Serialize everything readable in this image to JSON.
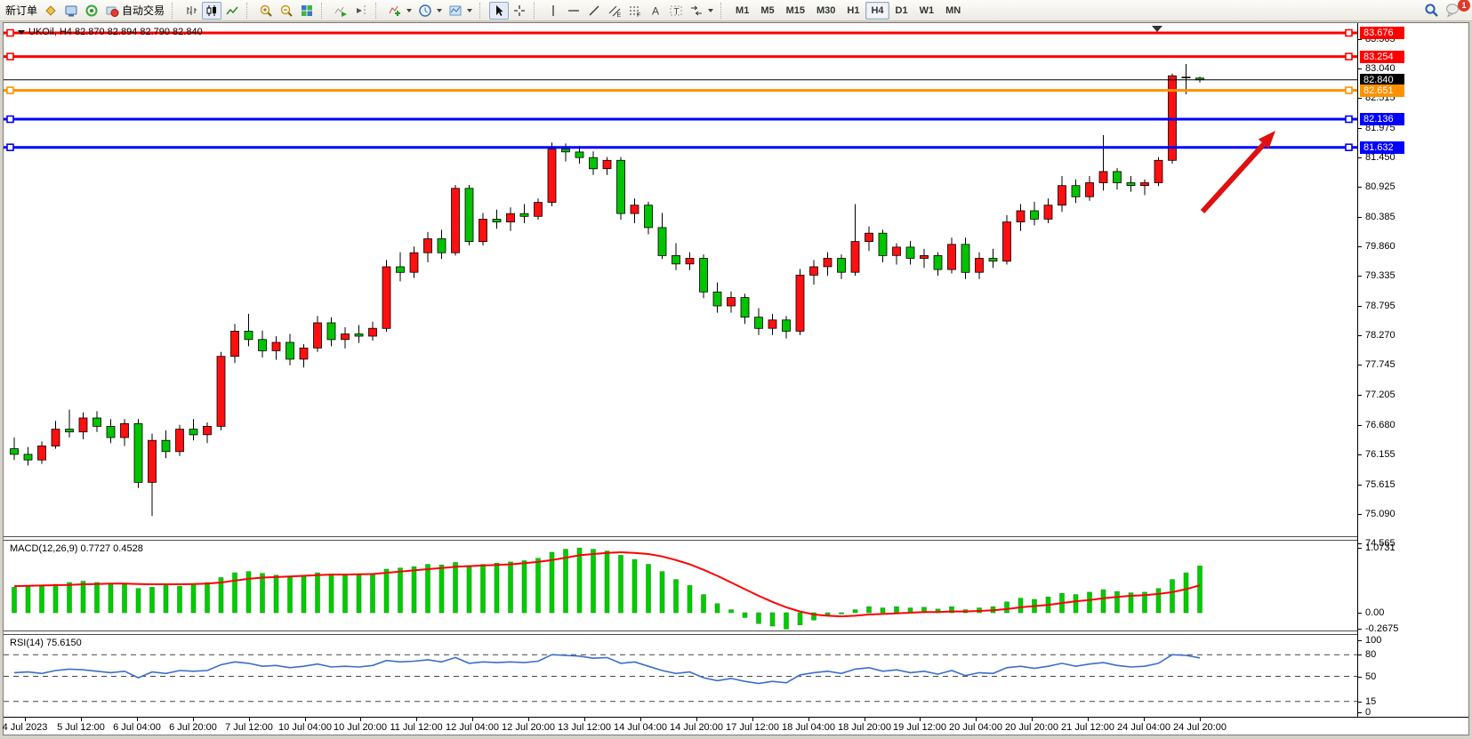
{
  "toolbar": {
    "new_order_label": "新订单",
    "autotrading_label": "自动交易",
    "timeframes": [
      "M1",
      "M5",
      "M15",
      "M30",
      "H1",
      "H4",
      "D1",
      "W1",
      "MN"
    ],
    "active_timeframe": "H4",
    "chat_badge_count": "1"
  },
  "chart_data": [
    {
      "type": "candlestick",
      "symbol": "UKOil",
      "timeframe": "H4",
      "title": "UKOil, H4  82.870 82.894 82.790 82.840",
      "ohlc_display": {
        "open": "82.870",
        "high": "82.894",
        "low": "82.790",
        "close": "82.840"
      },
      "ylim": [
        74.565,
        83.676
      ],
      "price_ticks": [
        83.565,
        83.04,
        82.515,
        81.975,
        81.45,
        80.925,
        80.385,
        79.86,
        79.335,
        78.795,
        78.27,
        77.745,
        77.205,
        76.68,
        76.155,
        75.615,
        75.09,
        74.565
      ],
      "hlines": [
        {
          "price": 83.676,
          "color": "#FF0000",
          "label": "83.676",
          "style": "thick"
        },
        {
          "price": 83.254,
          "color": "#FF0000",
          "label": "83.254",
          "style": "thick"
        },
        {
          "price": 82.84,
          "color": "#000000",
          "label": "82.840",
          "style": "thin"
        },
        {
          "price": 82.651,
          "color": "#FF9100",
          "label": "82.651",
          "style": "thick"
        },
        {
          "price": 82.136,
          "color": "#0000FF",
          "label": "82.136",
          "style": "thick"
        },
        {
          "price": 81.632,
          "color": "#0000FF",
          "label": "81.632",
          "style": "thick"
        }
      ],
      "colors": {
        "bull": "#FF1010",
        "bear": "#00C400",
        "wick": "#000000",
        "doji": "#000000",
        "arrow": "#E01010"
      },
      "candles": [
        [
          76.25,
          76.45,
          76.05,
          76.15
        ],
        [
          76.15,
          76.28,
          75.95,
          76.05
        ],
        [
          76.05,
          76.38,
          75.98,
          76.3
        ],
        [
          76.3,
          76.75,
          76.25,
          76.6
        ],
        [
          76.6,
          76.95,
          76.45,
          76.55
        ],
        [
          76.55,
          76.9,
          76.42,
          76.8
        ],
        [
          76.8,
          76.92,
          76.55,
          76.65
        ],
        [
          76.65,
          76.78,
          76.35,
          76.45
        ],
        [
          76.45,
          76.78,
          76.3,
          76.7
        ],
        [
          76.7,
          76.78,
          75.55,
          75.65
        ],
        [
          75.65,
          76.52,
          75.05,
          76.4
        ],
        [
          76.4,
          76.58,
          76.08,
          76.2
        ],
        [
          76.2,
          76.68,
          76.12,
          76.6
        ],
        [
          76.6,
          76.78,
          76.4,
          76.5
        ],
        [
          76.5,
          76.72,
          76.35,
          76.65
        ],
        [
          76.65,
          77.98,
          76.58,
          77.9
        ],
        [
          77.9,
          78.48,
          77.78,
          78.35
        ],
        [
          78.35,
          78.66,
          78.08,
          78.2
        ],
        [
          78.2,
          78.36,
          77.88,
          78.0
        ],
        [
          78.0,
          78.26,
          77.84,
          78.15
        ],
        [
          78.15,
          78.3,
          77.74,
          77.85
        ],
        [
          77.85,
          78.12,
          77.7,
          78.05
        ],
        [
          78.05,
          78.62,
          77.98,
          78.5
        ],
        [
          78.5,
          78.6,
          78.08,
          78.2
        ],
        [
          78.2,
          78.42,
          78.04,
          78.3
        ],
        [
          78.3,
          78.46,
          78.14,
          78.26
        ],
        [
          78.26,
          78.52,
          78.18,
          78.4
        ],
        [
          78.4,
          79.62,
          78.34,
          79.5
        ],
        [
          79.5,
          79.76,
          79.24,
          79.4
        ],
        [
          79.4,
          79.86,
          79.3,
          79.75
        ],
        [
          79.75,
          80.12,
          79.58,
          80.0
        ],
        [
          80.0,
          80.16,
          79.64,
          79.75
        ],
        [
          79.75,
          80.96,
          79.7,
          80.9
        ],
        [
          80.9,
          80.96,
          79.88,
          79.95
        ],
        [
          79.95,
          80.46,
          79.88,
          80.35
        ],
        [
          80.35,
          80.52,
          80.18,
          80.3
        ],
        [
          80.3,
          80.56,
          80.14,
          80.45
        ],
        [
          80.45,
          80.62,
          80.28,
          80.4
        ],
        [
          80.4,
          80.72,
          80.34,
          80.65
        ],
        [
          80.65,
          81.72,
          80.58,
          81.6
        ],
        [
          81.6,
          81.7,
          81.38,
          81.55
        ],
        [
          81.55,
          81.66,
          81.34,
          81.45
        ],
        [
          81.45,
          81.56,
          81.14,
          81.25
        ],
        [
          81.25,
          81.46,
          81.14,
          81.4
        ],
        [
          81.4,
          81.46,
          80.34,
          80.45
        ],
        [
          80.45,
          80.72,
          80.28,
          80.6
        ],
        [
          80.6,
          80.66,
          80.08,
          80.2
        ],
        [
          80.2,
          80.46,
          79.64,
          79.7
        ],
        [
          79.7,
          79.92,
          79.44,
          79.55
        ],
        [
          79.55,
          79.76,
          79.44,
          79.65
        ],
        [
          79.65,
          79.72,
          78.94,
          79.05
        ],
        [
          79.05,
          79.22,
          78.68,
          78.8
        ],
        [
          78.8,
          79.06,
          78.68,
          78.95
        ],
        [
          78.95,
          79.02,
          78.48,
          78.6
        ],
        [
          78.6,
          78.76,
          78.28,
          78.4
        ],
        [
          78.4,
          78.66,
          78.28,
          78.55
        ],
        [
          78.55,
          78.62,
          78.22,
          78.35
        ],
        [
          78.35,
          79.46,
          78.28,
          79.35
        ],
        [
          79.35,
          79.62,
          79.18,
          79.5
        ],
        [
          79.5,
          79.76,
          79.34,
          79.65
        ],
        [
          79.65,
          79.72,
          79.28,
          79.4
        ],
        [
          79.4,
          80.62,
          79.34,
          79.95
        ],
        [
          79.95,
          80.22,
          79.78,
          80.1
        ],
        [
          80.1,
          80.16,
          79.58,
          79.7
        ],
        [
          79.7,
          79.92,
          79.54,
          79.85
        ],
        [
          79.85,
          79.96,
          79.54,
          79.65
        ],
        [
          79.65,
          79.82,
          79.48,
          79.7
        ],
        [
          79.7,
          79.76,
          79.34,
          79.45
        ],
        [
          79.45,
          80.02,
          79.38,
          79.9
        ],
        [
          79.9,
          80.02,
          79.28,
          79.4
        ],
        [
          79.4,
          79.76,
          79.28,
          79.65
        ],
        [
          79.65,
          79.82,
          79.48,
          79.6
        ],
        [
          79.6,
          80.42,
          79.54,
          80.3
        ],
        [
          80.3,
          80.62,
          80.14,
          80.5
        ],
        [
          80.5,
          80.66,
          80.24,
          80.35
        ],
        [
          80.35,
          80.72,
          80.28,
          80.6
        ],
        [
          80.6,
          81.12,
          80.48,
          80.95
        ],
        [
          80.95,
          81.06,
          80.64,
          80.75
        ],
        [
          80.75,
          81.12,
          80.68,
          81.0
        ],
        [
          81.0,
          81.85,
          80.86,
          81.2
        ],
        [
          81.2,
          81.26,
          80.88,
          81.0
        ],
        [
          81.0,
          81.12,
          80.84,
          80.95
        ],
        [
          80.95,
          81.06,
          80.78,
          81.0
        ],
        [
          81.0,
          81.46,
          80.94,
          81.4
        ],
        [
          81.4,
          82.95,
          81.34,
          82.91
        ],
        [
          82.88,
          83.12,
          82.58,
          82.87
        ],
        [
          82.87,
          82.894,
          82.79,
          82.84
        ]
      ],
      "dates": [
        "4 Jul 2023",
        "5 Jul 12:00",
        "6 Jul 04:00",
        "6 Jul 20:00",
        "7 Jul 12:00",
        "10 Jul 04:00",
        "10 Jul 20:00",
        "11 Jul 12:00",
        "12 Jul 04:00",
        "12 Jul 20:00",
        "13 Jul 12:00",
        "14 Jul 04:00",
        "14 Jul 20:00",
        "17 Jul 12:00",
        "18 Jul 04:00",
        "18 Jul 20:00",
        "19 Jul 12:00",
        "20 Jul 04:00",
        "20 Jul 20:00",
        "21 Jul 12:00",
        "24 Jul 04:00",
        "24 Jul 20:00"
      ]
    },
    {
      "type": "bar",
      "name": "MACD",
      "label": "MACD(12,26,9) 0.7727 0.4528",
      "axis_ticks": [
        "1.0731",
        "0.00",
        "-0.2675"
      ],
      "colors": {
        "histogram": "#00CC00",
        "signal": "#FF0000"
      },
      "histogram": [
        0.42,
        0.45,
        0.44,
        0.47,
        0.5,
        0.52,
        0.5,
        0.48,
        0.47,
        0.4,
        0.42,
        0.45,
        0.44,
        0.48,
        0.5,
        0.58,
        0.66,
        0.68,
        0.65,
        0.62,
        0.6,
        0.62,
        0.66,
        0.64,
        0.62,
        0.63,
        0.65,
        0.72,
        0.74,
        0.76,
        0.8,
        0.79,
        0.83,
        0.78,
        0.8,
        0.82,
        0.84,
        0.86,
        0.9,
        1.0,
        1.05,
        1.07,
        1.05,
        1.02,
        0.95,
        0.88,
        0.8,
        0.68,
        0.55,
        0.45,
        0.3,
        0.15,
        0.05,
        -0.08,
        -0.18,
        -0.22,
        -0.27,
        -0.2,
        -0.12,
        -0.05,
        -0.02,
        0.05,
        0.1,
        0.08,
        0.1,
        0.08,
        0.09,
        0.06,
        0.1,
        0.05,
        0.08,
        0.1,
        0.18,
        0.24,
        0.22,
        0.26,
        0.32,
        0.3,
        0.34,
        0.38,
        0.35,
        0.33,
        0.34,
        0.4,
        0.55,
        0.66,
        0.7727
      ],
      "signal": [
        0.44,
        0.445,
        0.45,
        0.455,
        0.46,
        0.47,
        0.475,
        0.48,
        0.48,
        0.475,
        0.47,
        0.47,
        0.47,
        0.475,
        0.48,
        0.5,
        0.53,
        0.56,
        0.58,
        0.59,
        0.6,
        0.61,
        0.62,
        0.63,
        0.63,
        0.635,
        0.64,
        0.66,
        0.68,
        0.7,
        0.72,
        0.74,
        0.76,
        0.77,
        0.78,
        0.79,
        0.8,
        0.82,
        0.84,
        0.87,
        0.91,
        0.95,
        0.97,
        0.99,
        1.0,
        0.99,
        0.97,
        0.93,
        0.87,
        0.8,
        0.71,
        0.61,
        0.5,
        0.39,
        0.28,
        0.18,
        0.09,
        0.02,
        -0.03,
        -0.05,
        -0.06,
        -0.05,
        -0.03,
        -0.02,
        -0.01,
        0.0,
        0.01,
        0.01,
        0.02,
        0.02,
        0.03,
        0.04,
        0.06,
        0.09,
        0.11,
        0.13,
        0.16,
        0.19,
        0.21,
        0.24,
        0.26,
        0.28,
        0.29,
        0.31,
        0.34,
        0.39,
        0.4528
      ]
    },
    {
      "type": "line",
      "name": "RSI",
      "label": "RSI(14) 75.6150",
      "axis_ticks": [
        "100",
        "80",
        "50",
        "15",
        "0"
      ],
      "levels": [
        80,
        50,
        15
      ],
      "color": "#3C6EC8",
      "values": [
        55,
        56,
        54,
        58,
        60,
        59,
        57,
        55,
        57,
        48,
        56,
        54,
        58,
        57,
        58,
        66,
        70,
        68,
        64,
        65,
        62,
        64,
        67,
        63,
        64,
        63,
        65,
        72,
        70,
        71,
        73,
        70,
        76,
        68,
        70,
        69,
        70,
        69,
        71,
        80,
        79,
        78,
        75,
        76,
        68,
        70,
        64,
        58,
        54,
        56,
        48,
        44,
        47,
        43,
        40,
        43,
        41,
        52,
        55,
        57,
        54,
        60,
        62,
        57,
        59,
        55,
        57,
        53,
        58,
        51,
        55,
        54,
        62,
        64,
        61,
        64,
        68,
        64,
        67,
        69,
        65,
        63,
        64,
        68,
        80,
        79,
        75.6
      ]
    }
  ]
}
